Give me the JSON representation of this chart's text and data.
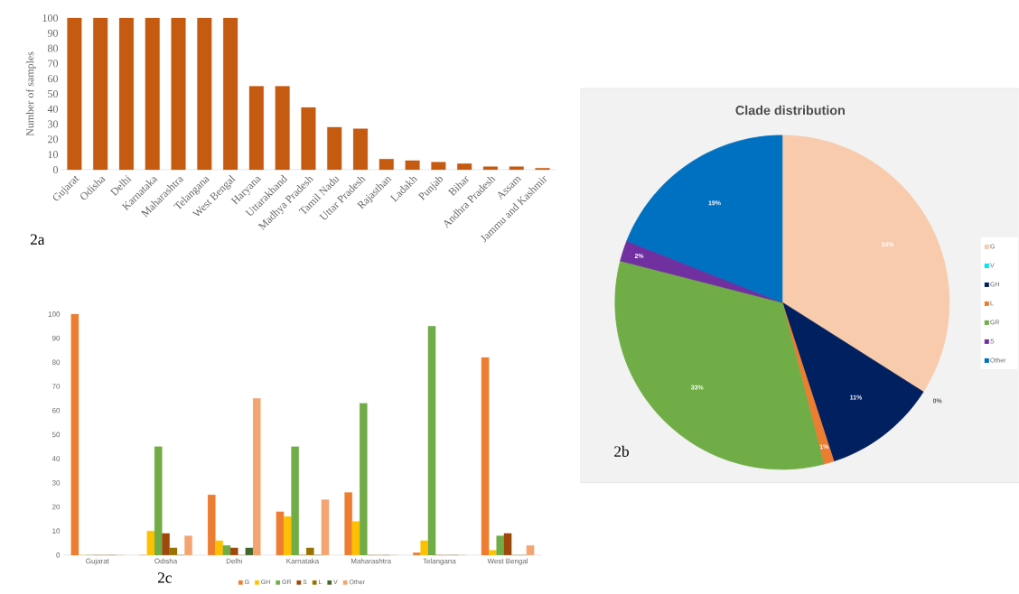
{
  "chart_data": [
    {
      "type": "bar",
      "ylabel": "Number of samples",
      "categories": [
        "Gujarat",
        "Odisha",
        "Delhi",
        "Karnataka",
        "Maharashtra",
        "Telangana",
        "West Bengal",
        "Haryana",
        "Uttarakhand",
        "Madhya Pradesh",
        "Tamil Nadu",
        "Uttar Pradesh",
        "Rajasthan",
        "Ladakh",
        "Punjab",
        "Bihar",
        "Andhra Pradesh",
        "Assam",
        "Jammu and Kashmir"
      ],
      "values": [
        100,
        100,
        100,
        100,
        100,
        100,
        100,
        55,
        55,
        41,
        28,
        27,
        7,
        6,
        5,
        4,
        2,
        2,
        1
      ],
      "color": "#c55a11",
      "ylim": [
        0,
        100
      ],
      "yticks": [
        0,
        10,
        20,
        30,
        40,
        50,
        60,
        70,
        80,
        90,
        100
      ],
      "annotations": [
        "2a"
      ]
    },
    {
      "type": "pie",
      "title": "Clade distribution",
      "categories": [
        "G",
        "V",
        "GH",
        "L",
        "GR",
        "S",
        "Other"
      ],
      "values": [
        34,
        0,
        11,
        1,
        33,
        2,
        19
      ],
      "value_labels": [
        "34%",
        "0%",
        "11%",
        "1%",
        "33%",
        "2%",
        "19%"
      ],
      "colors": [
        "#f8cbad",
        "#00e5ee",
        "#002060",
        "#ed7d31",
        "#70ad47",
        "#7030a0",
        "#0070c0"
      ],
      "legend": "right",
      "annotations": [
        "2b"
      ]
    },
    {
      "type": "bar",
      "categories": [
        "Gujarat",
        "Odisha",
        "Delhi",
        "Karnataka",
        "Maharashtra",
        "Telangana",
        "West Bengal"
      ],
      "series": [
        {
          "name": "G",
          "color": "#ed7d31",
          "values": [
            100,
            0,
            25,
            18,
            26,
            1,
            82
          ]
        },
        {
          "name": "GH",
          "color": "#ffc000",
          "values": [
            0,
            10,
            6,
            16,
            14,
            6,
            2
          ]
        },
        {
          "name": "GR",
          "color": "#70ad47",
          "values": [
            0,
            45,
            4,
            45,
            63,
            95,
            8
          ]
        },
        {
          "name": "S",
          "color": "#9e480e",
          "values": [
            0,
            9,
            3,
            0,
            0,
            0,
            9
          ]
        },
        {
          "name": "L",
          "color": "#997300",
          "values": [
            0,
            3,
            0,
            3,
            0,
            0,
            0
          ]
        },
        {
          "name": "V",
          "color": "#43682b",
          "values": [
            0,
            0,
            3,
            0,
            0,
            0,
            0
          ]
        },
        {
          "name": "Other",
          "color": "#f4a470",
          "values": [
            0,
            8,
            65,
            23,
            0,
            0,
            4
          ]
        }
      ],
      "ylim": [
        0,
        100
      ],
      "yticks": [
        0,
        10,
        20,
        30,
        40,
        50,
        60,
        70,
        80,
        90,
        100
      ],
      "legend": "bottom",
      "annotations": [
        "2c"
      ]
    }
  ]
}
